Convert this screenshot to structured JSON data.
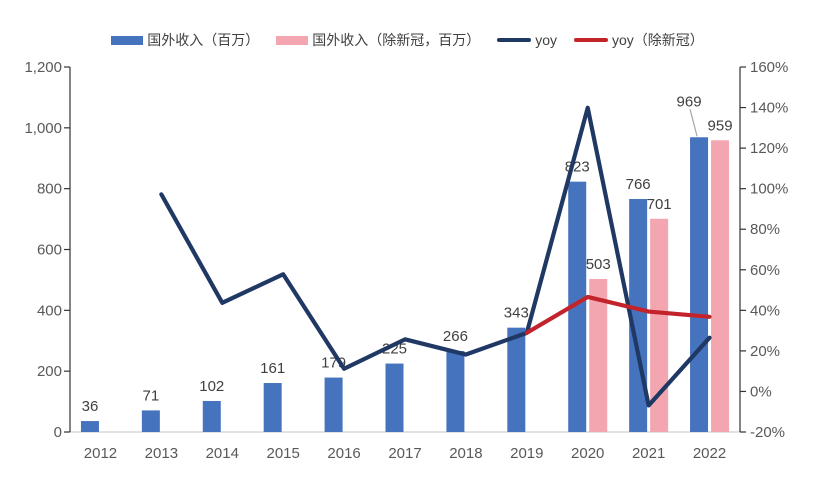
{
  "chart_data": {
    "type": "combo",
    "title": "",
    "categories": [
      "2012",
      "2013",
      "2014",
      "2015",
      "2016",
      "2017",
      "2018",
      "2019",
      "2020",
      "2021",
      "2022"
    ],
    "series": [
      {
        "name": "国外收入（百万）",
        "type": "bar",
        "color": "#4673BE",
        "axis": "left",
        "values": [
          36,
          71,
          102,
          161,
          179,
          225,
          266,
          343,
          823,
          766,
          969
        ],
        "data_labels": [
          "36",
          "71",
          "102",
          "161",
          "179",
          "225",
          "266",
          "343",
          "823",
          "766",
          "969"
        ],
        "label_overrides": {
          "10": {
            "dx": -10,
            "dy": -21,
            "leader": true
          }
        }
      },
      {
        "name": "国外收入（除新冠，百万）",
        "type": "bar",
        "color": "#F4A6B0",
        "axis": "left",
        "values": [
          null,
          null,
          null,
          null,
          null,
          null,
          null,
          null,
          503,
          701,
          959
        ],
        "data_labels": [
          null,
          null,
          null,
          null,
          null,
          null,
          null,
          null,
          "503",
          "701",
          "959"
        ]
      },
      {
        "name": "yoy",
        "type": "line",
        "color": "#1F3864",
        "axis": "right",
        "values": [
          null,
          97.2,
          43.7,
          57.8,
          11.2,
          25.7,
          18.2,
          28.9,
          139.9,
          -6.9,
          26.5
        ]
      },
      {
        "name": "yoy（除新冠）",
        "type": "line",
        "color": "#C3242C",
        "axis": "right",
        "values": [
          null,
          null,
          null,
          null,
          null,
          null,
          null,
          28.9,
          46.6,
          39.4,
          36.8
        ]
      }
    ],
    "left_axis": {
      "min": 0,
      "max": 1200,
      "tick_labels": [
        "0",
        "200",
        "400",
        "600",
        "800",
        "1,000",
        "1,200"
      ]
    },
    "right_axis": {
      "min": -20,
      "max": 160,
      "tick_labels": [
        "-20%",
        "0%",
        "20%",
        "40%",
        "60%",
        "80%",
        "100%",
        "120%",
        "140%",
        "160%"
      ]
    },
    "grid": false,
    "legend_position": "top",
    "colors": {
      "axis_line": "#333333",
      "tick_label": "#595959",
      "data_label": "#404040",
      "baseline": "#D9D9D9",
      "leader_line": "#A6A6A6"
    }
  }
}
